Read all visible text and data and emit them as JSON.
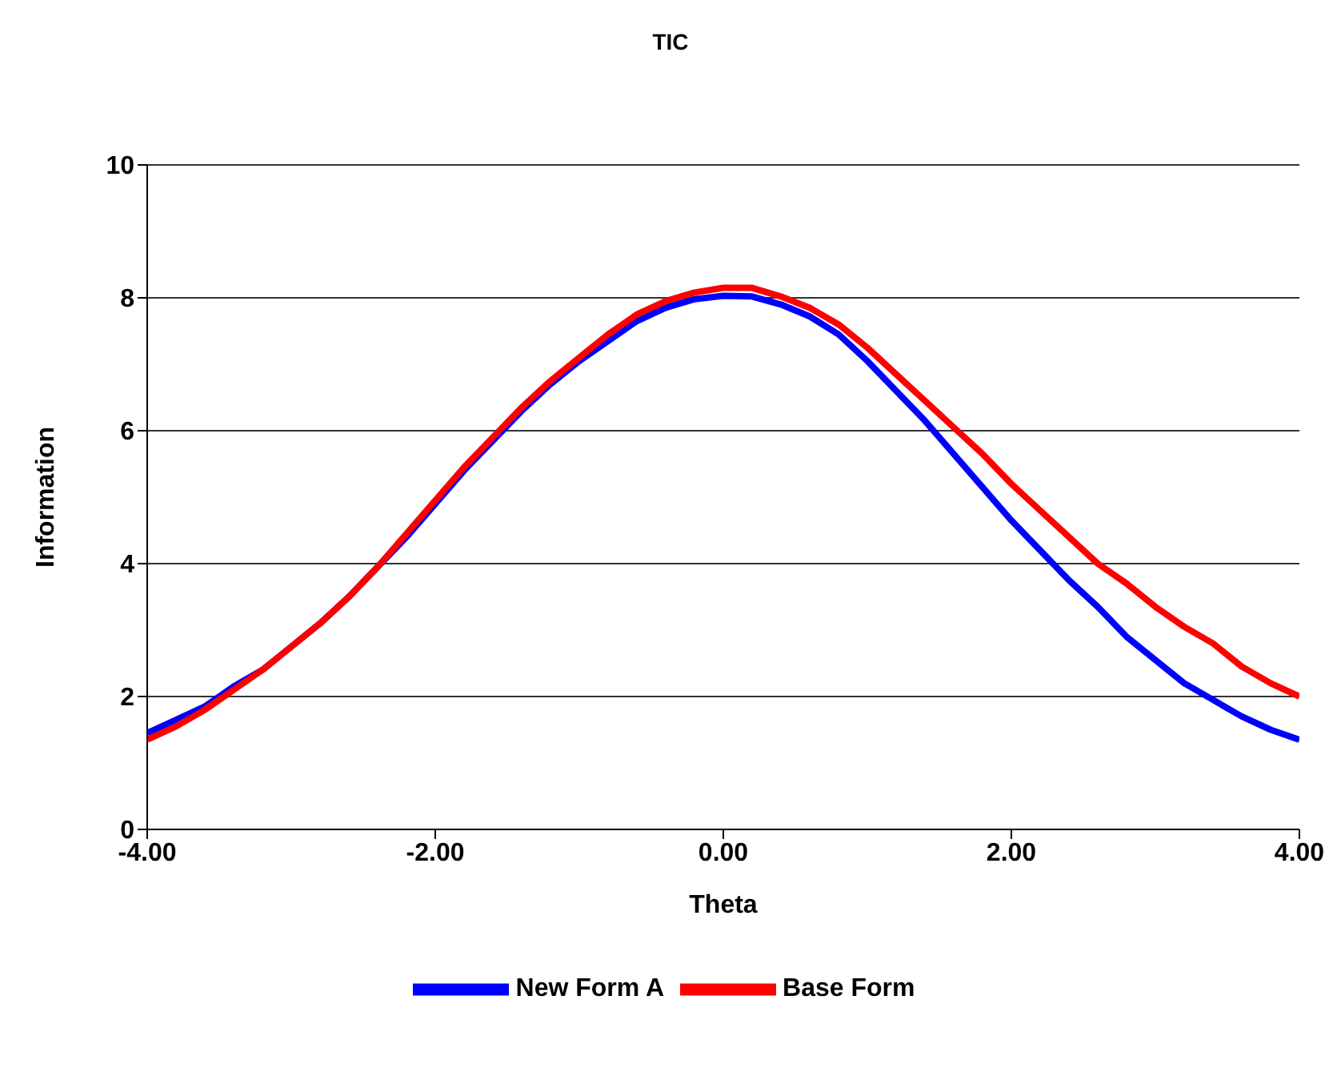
{
  "chart_data": {
    "type": "line",
    "title": "TIC",
    "xlabel": "Theta",
    "ylabel": "Information",
    "x": [
      -4,
      -3.8,
      -3.6,
      -3.4,
      -3.2,
      -3,
      -2.8,
      -2.6,
      -2.4,
      -2.2,
      -2,
      -1.8,
      -1.6,
      -1.4,
      -1.2,
      -1,
      -0.8,
      -0.6,
      -0.4,
      -0.2,
      0,
      0.2,
      0.4,
      0.6,
      0.8,
      1,
      1.2,
      1.4,
      1.6,
      1.8,
      2,
      2.2,
      2.4,
      2.6,
      2.8,
      3,
      3.2,
      3.4,
      3.6,
      3.8,
      4
    ],
    "series": [
      {
        "name": "New Form A",
        "color": "#0000ff",
        "values": [
          1.45,
          1.65,
          1.85,
          2.15,
          2.4,
          2.75,
          3.1,
          3.5,
          3.95,
          4.4,
          4.9,
          5.4,
          5.85,
          6.3,
          6.7,
          7.05,
          7.35,
          7.65,
          7.85,
          7.98,
          8.03,
          8.02,
          7.9,
          7.72,
          7.45,
          7.05,
          6.6,
          6.15,
          5.65,
          5.15,
          4.65,
          4.2,
          3.75,
          3.35,
          2.9,
          2.55,
          2.2,
          1.95,
          1.7,
          1.5,
          1.35
        ]
      },
      {
        "name": "Base Form",
        "color": "#ff0000",
        "values": [
          1.35,
          1.55,
          1.8,
          2.1,
          2.4,
          2.75,
          3.1,
          3.5,
          3.95,
          4.45,
          4.95,
          5.45,
          5.9,
          6.35,
          6.75,
          7.1,
          7.45,
          7.75,
          7.95,
          8.08,
          8.15,
          8.15,
          8.02,
          7.85,
          7.6,
          7.25,
          6.85,
          6.45,
          6.05,
          5.65,
          5.2,
          4.8,
          4.4,
          4,
          3.7,
          3.35,
          3.05,
          2.8,
          2.45,
          2.2,
          2
        ]
      }
    ],
    "xlim": [
      -4,
      4
    ],
    "xticks": [
      {
        "value": -4,
        "label": "-4.00"
      },
      {
        "value": -2,
        "label": "-2.00"
      },
      {
        "value": 0,
        "label": "0.00"
      },
      {
        "value": 2,
        "label": "2.00"
      },
      {
        "value": 4,
        "label": "4.00"
      }
    ],
    "ylim": [
      0,
      10
    ],
    "yticks": [
      0,
      2,
      4,
      6,
      8,
      10
    ],
    "grid": "y",
    "legend": "bottom",
    "marker": "none",
    "line_style": "solid"
  }
}
